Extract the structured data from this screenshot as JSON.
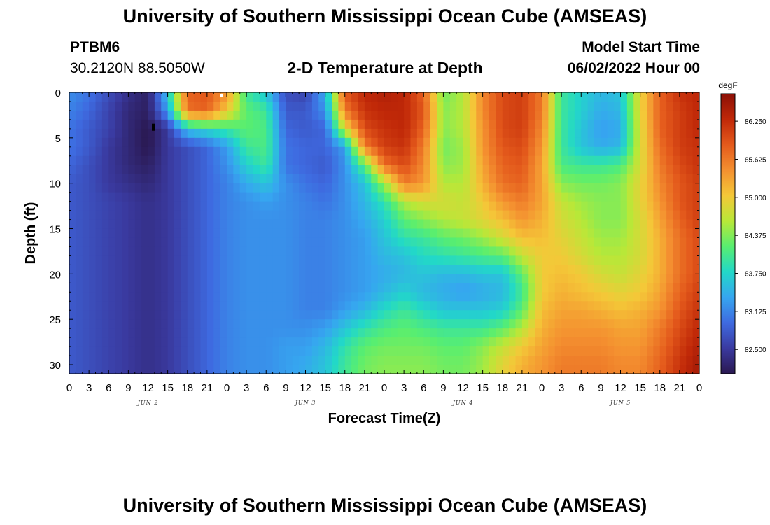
{
  "header": {
    "title": "University of Southern Mississippi Ocean Cube (AMSEAS)",
    "station_id": "PTBM6",
    "station_coords": "30.2120N  88.5050W",
    "plot_title": "2-D Temperature at Depth",
    "model_start_label": "Model Start Time",
    "model_start_value": "06/02/2022 Hour 00"
  },
  "footer": {
    "title": "University of Southern Mississippi Ocean Cube (AMSEAS)"
  },
  "chart_data": {
    "type": "heatmap",
    "title": "2-D Temperature at Depth",
    "xlabel": "Forecast Time(Z)",
    "ylabel": "Depth (ft)",
    "x_unit": "hours since 06/02/2022 00Z",
    "xlim": [
      0,
      96
    ],
    "ylim": [
      31,
      0
    ],
    "x_tick_labels": [
      "0",
      "3",
      "6",
      "9",
      "12",
      "15",
      "18",
      "21",
      "0",
      "3",
      "6",
      "9",
      "12",
      "15",
      "18",
      "21",
      "0",
      "3",
      "6",
      "9",
      "12",
      "15",
      "18",
      "21",
      "0",
      "3",
      "6",
      "9",
      "12",
      "15",
      "18",
      "21",
      "0"
    ],
    "day_labels": [
      {
        "label": "JUN 2",
        "hour": 12
      },
      {
        "label": "JUN 3",
        "hour": 36
      },
      {
        "label": "JUN 4",
        "hour": 60
      },
      {
        "label": "JUN 5",
        "hour": 84
      }
    ],
    "y_ticks": [
      0,
      5,
      10,
      15,
      20,
      25,
      30
    ],
    "y_tick_labels": [
      "0",
      "5",
      "10",
      "15",
      "20",
      "25",
      "30"
    ],
    "colorbar": {
      "unit": "degF",
      "range": [
        82.1,
        86.7
      ],
      "tick_values": [
        82.5,
        83.125,
        83.75,
        84.375,
        85.0,
        85.625,
        86.25
      ],
      "tick_labels": [
        "82.500",
        "83.125",
        "83.750",
        "84.375",
        "85.000",
        "85.625",
        "86.250"
      ],
      "colors": [
        "#2a1850",
        "#3a3aa0",
        "#3e6ae0",
        "#36a6f0",
        "#22d8c8",
        "#58ee70",
        "#b8e838",
        "#f4c838",
        "#f49030",
        "#e45a1c",
        "#c02808",
        "#8c1006"
      ]
    },
    "grid_hours": [
      0,
      3,
      6,
      9,
      12,
      15,
      18,
      21,
      24,
      27,
      30,
      33,
      36,
      39,
      42,
      45,
      48,
      51,
      54,
      57,
      60,
      63,
      66,
      69,
      72,
      75,
      78,
      81,
      84,
      87,
      90,
      93,
      96
    ],
    "grid_depths_ft": [
      0,
      2,
      4,
      6,
      8,
      10,
      12,
      14,
      16,
      18,
      20,
      22,
      24,
      26,
      28,
      30,
      31
    ],
    "temperature_degF": [
      [
        83.2,
        83.0,
        82.7,
        82.4,
        82.2,
        83.6,
        85.8,
        85.9,
        85.4,
        84.0,
        83.6,
        82.7,
        82.6,
        83.4,
        85.9,
        86.3,
        86.4,
        86.3,
        85.8,
        84.3,
        84.6,
        85.5,
        86.0,
        86.1,
        85.6,
        84.0,
        83.7,
        83.5,
        83.6,
        84.9,
        85.8,
        86.2,
        86.3
      ],
      [
        83.1,
        82.9,
        82.6,
        82.3,
        82.2,
        83.3,
        85.7,
        85.8,
        85.0,
        84.2,
        84.0,
        82.8,
        82.8,
        83.2,
        85.6,
        86.2,
        86.3,
        86.3,
        85.9,
        84.4,
        84.6,
        85.5,
        86.0,
        86.1,
        85.6,
        84.0,
        83.7,
        83.4,
        83.5,
        84.9,
        85.8,
        86.1,
        86.3
      ],
      [
        83.0,
        82.8,
        82.6,
        82.3,
        82.1,
        82.5,
        83.6,
        83.8,
        84.0,
        84.2,
        84.1,
        82.9,
        82.8,
        82.9,
        84.8,
        86.0,
        86.2,
        86.3,
        85.8,
        84.4,
        84.6,
        85.4,
        86.0,
        86.1,
        85.5,
        84.0,
        83.6,
        83.3,
        83.4,
        84.8,
        85.8,
        86.1,
        86.3
      ],
      [
        83.0,
        82.8,
        82.5,
        82.3,
        82.1,
        82.5,
        82.7,
        82.9,
        83.3,
        84.0,
        84.1,
        83.0,
        82.9,
        82.9,
        83.3,
        85.6,
        86.1,
        86.2,
        85.6,
        84.3,
        84.5,
        85.4,
        85.9,
        86.0,
        85.4,
        84.0,
        83.6,
        83.4,
        83.5,
        84.8,
        85.7,
        86.1,
        86.2
      ],
      [
        82.9,
        82.7,
        82.5,
        82.3,
        82.2,
        82.5,
        82.7,
        82.9,
        83.2,
        83.7,
        84.0,
        83.0,
        82.9,
        82.8,
        83.2,
        84.2,
        85.7,
        86.0,
        85.5,
        84.4,
        84.5,
        85.3,
        85.8,
        85.9,
        85.3,
        84.1,
        84.0,
        84.0,
        84.1,
        84.8,
        85.6,
        86.0,
        86.2
      ],
      [
        82.8,
        82.7,
        82.5,
        82.4,
        82.3,
        82.5,
        82.7,
        82.9,
        83.1,
        83.4,
        83.6,
        83.2,
        83.0,
        82.9,
        83.2,
        83.6,
        84.5,
        85.6,
        85.4,
        84.6,
        84.6,
        85.2,
        85.7,
        85.8,
        85.3,
        84.4,
        84.3,
        84.3,
        84.4,
        84.9,
        85.5,
        85.9,
        86.1
      ],
      [
        82.8,
        82.7,
        82.6,
        82.5,
        82.4,
        82.5,
        82.7,
        82.9,
        83.1,
        83.2,
        83.3,
        83.2,
        83.1,
        83.0,
        83.2,
        83.5,
        83.9,
        84.6,
        84.8,
        84.8,
        84.7,
        85.0,
        85.4,
        85.6,
        85.3,
        84.7,
        84.5,
        84.4,
        84.4,
        84.9,
        85.4,
        85.9,
        86.1
      ],
      [
        82.8,
        82.7,
        82.6,
        82.5,
        82.4,
        82.5,
        82.7,
        82.9,
        83.1,
        83.2,
        83.2,
        83.2,
        83.1,
        83.1,
        83.2,
        83.4,
        83.7,
        84.2,
        84.4,
        84.6,
        84.7,
        84.9,
        85.1,
        85.4,
        85.2,
        84.8,
        84.6,
        84.4,
        84.4,
        84.8,
        85.3,
        85.8,
        86.1
      ],
      [
        82.8,
        82.7,
        82.6,
        82.5,
        82.4,
        82.5,
        82.7,
        82.9,
        83.1,
        83.2,
        83.2,
        83.2,
        83.1,
        83.1,
        83.2,
        83.3,
        83.6,
        83.9,
        84.0,
        84.2,
        84.3,
        84.5,
        84.8,
        85.1,
        85.1,
        84.9,
        84.7,
        84.5,
        84.5,
        84.8,
        85.2,
        85.7,
        86.0
      ],
      [
        82.8,
        82.7,
        82.6,
        82.5,
        82.4,
        82.5,
        82.7,
        82.9,
        83.1,
        83.2,
        83.2,
        83.2,
        83.1,
        83.1,
        83.2,
        83.3,
        83.5,
        83.6,
        83.8,
        83.9,
        84.0,
        84.1,
        84.2,
        84.7,
        85.0,
        85.0,
        84.8,
        84.6,
        84.6,
        84.8,
        85.2,
        85.7,
        86.0
      ],
      [
        82.8,
        82.7,
        82.6,
        82.5,
        82.4,
        82.5,
        82.7,
        82.9,
        83.1,
        83.2,
        83.2,
        83.2,
        83.1,
        83.1,
        83.2,
        83.3,
        83.4,
        83.5,
        83.6,
        83.5,
        83.5,
        83.6,
        83.6,
        84.2,
        85.0,
        85.1,
        85.0,
        84.8,
        84.7,
        84.9,
        85.2,
        85.7,
        86.0
      ],
      [
        82.8,
        82.7,
        82.6,
        82.5,
        82.4,
        82.5,
        82.7,
        82.9,
        83.1,
        83.2,
        83.2,
        83.2,
        83.1,
        83.1,
        83.2,
        83.3,
        83.5,
        83.7,
        83.5,
        83.4,
        83.3,
        83.4,
        83.5,
        84.0,
        85.0,
        85.2,
        85.1,
        85.0,
        84.9,
        85.0,
        85.3,
        85.8,
        86.1
      ],
      [
        82.8,
        82.7,
        82.6,
        82.5,
        82.4,
        82.5,
        82.7,
        82.9,
        83.1,
        83.2,
        83.2,
        83.2,
        83.1,
        83.1,
        83.3,
        83.5,
        83.8,
        84.0,
        83.8,
        83.6,
        83.6,
        83.6,
        83.7,
        84.2,
        85.1,
        85.3,
        85.3,
        85.2,
        85.1,
        85.2,
        85.4,
        85.9,
        86.2
      ],
      [
        82.8,
        82.7,
        82.6,
        82.5,
        82.4,
        82.5,
        82.7,
        82.9,
        83.1,
        83.2,
        83.2,
        83.2,
        83.2,
        83.3,
        83.6,
        83.9,
        84.1,
        84.2,
        84.1,
        84.0,
        84.0,
        84.0,
        84.2,
        84.6,
        85.2,
        85.4,
        85.4,
        85.4,
        85.3,
        85.3,
        85.6,
        86.0,
        86.3
      ],
      [
        82.8,
        82.7,
        82.6,
        82.5,
        82.4,
        82.5,
        82.7,
        82.9,
        83.1,
        83.2,
        83.2,
        83.3,
        83.3,
        83.5,
        83.9,
        84.2,
        84.3,
        84.3,
        84.3,
        84.2,
        84.2,
        84.4,
        84.7,
        85.0,
        85.3,
        85.5,
        85.5,
        85.5,
        85.4,
        85.4,
        85.7,
        86.1,
        86.4
      ],
      [
        82.8,
        82.7,
        82.6,
        82.5,
        82.4,
        82.5,
        82.7,
        82.9,
        83.1,
        83.2,
        83.2,
        83.3,
        83.4,
        83.6,
        84.0,
        84.3,
        84.4,
        84.4,
        84.4,
        84.3,
        84.3,
        84.5,
        84.9,
        85.2,
        85.4,
        85.6,
        85.6,
        85.6,
        85.5,
        85.5,
        85.8,
        86.2,
        86.5
      ],
      [
        82.8,
        82.7,
        82.6,
        82.5,
        82.4,
        82.5,
        82.7,
        82.9,
        83.1,
        83.2,
        83.2,
        83.3,
        83.4,
        83.6,
        84.0,
        84.3,
        84.4,
        84.4,
        84.4,
        84.3,
        84.3,
        84.5,
        84.9,
        85.2,
        85.4,
        85.6,
        85.6,
        85.6,
        85.5,
        85.5,
        85.8,
        86.2,
        86.5
      ]
    ],
    "markers": [
      {
        "hour": 12.8,
        "depth_ft": 3.6,
        "color": "#000000"
      },
      {
        "hour": 23.2,
        "depth_ft": 0.3,
        "color": "#ffffff"
      }
    ]
  }
}
